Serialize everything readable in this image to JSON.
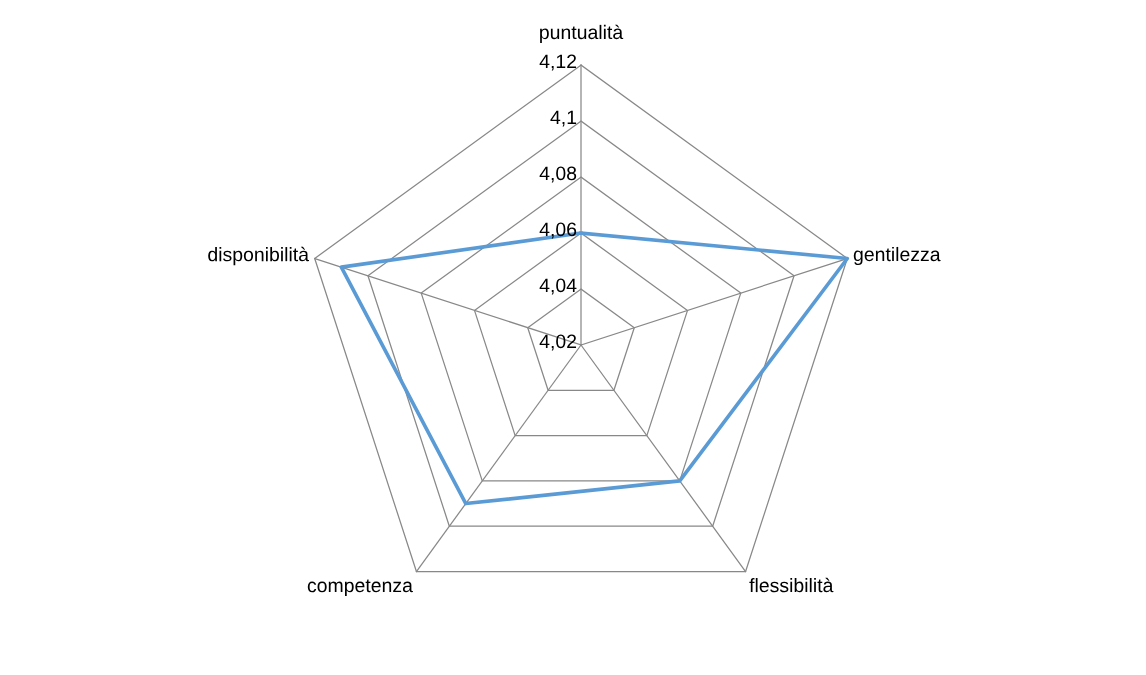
{
  "chart_data": {
    "type": "radar",
    "categories": [
      "puntualità",
      "gentilezza",
      "flessibilità",
      "competenza",
      "disponibilità"
    ],
    "series": [
      {
        "color": "#5b9bd5",
        "values": [
          4.06,
          4.12,
          4.08,
          4.09,
          4.11
        ]
      }
    ],
    "ylim": [
      4.02,
      4.12
    ],
    "yticks": [
      {
        "value": 4.02,
        "label": "4,02"
      },
      {
        "value": 4.04,
        "label": "4,04"
      },
      {
        "value": 4.06,
        "label": "4,06"
      },
      {
        "value": 4.08,
        "label": "4,08"
      },
      {
        "value": 4.1,
        "label": "4,1"
      },
      {
        "value": 4.12,
        "label": "4,12"
      }
    ],
    "grid": true
  }
}
